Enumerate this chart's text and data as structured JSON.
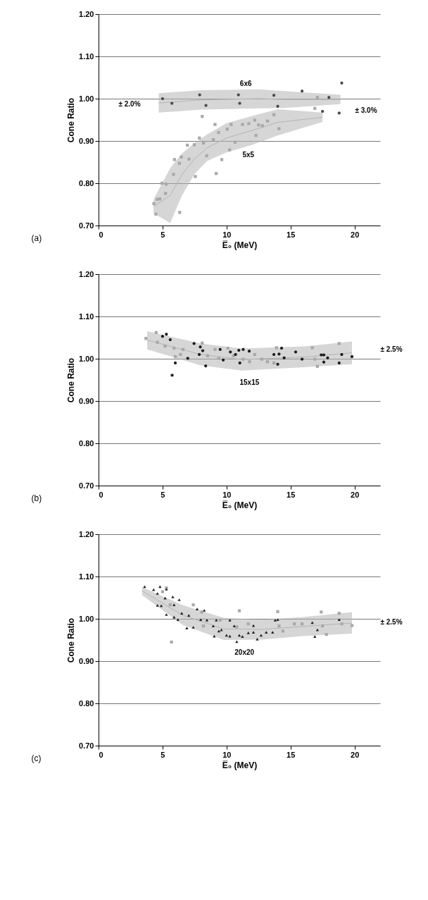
{
  "chart_data": [
    {
      "type": "scatter",
      "xlabel": "E̅₀ (MeV)",
      "ylabel": "Cone Ratio",
      "xlim": [
        0,
        22
      ],
      "xticks": [
        0,
        5,
        10,
        15,
        20
      ],
      "ylim": [
        0.7,
        1.2
      ],
      "yticks": [
        {
          "value": 0.7,
          "label": "0.70"
        },
        {
          "value": 0.8,
          "label": "0.80"
        },
        {
          "value": 0.9,
          "label": "0.90"
        },
        {
          "value": 1.0,
          "label": "1.00"
        },
        {
          "value": 1.1,
          "label": "1.10"
        },
        {
          "value": 1.2,
          "label": "1.20"
        }
      ],
      "grid": "y",
      "series": [
        {
          "type": "line",
          "color": "#b4b4b4",
          "x": [
            4.7,
            8.0,
            12.5,
            14.5,
            18.9
          ],
          "values": [
            0.99,
            0.997,
            1.0,
            0.998,
            0.998
          ],
          "lower": [
            0.967,
            0.974,
            0.977,
            0.978,
            0.987
          ],
          "upper": [
            1.013,
            1.02,
            1.022,
            1.018,
            1.009
          ]
        },
        {
          "type": "line",
          "color": "#b4b4b4",
          "x": [
            4.3,
            5.6,
            6.5,
            7.5,
            8.5,
            10,
            12,
            14,
            17.5
          ],
          "values": [
            0.745,
            0.771,
            0.82,
            0.858,
            0.884,
            0.907,
            0.925,
            0.944,
            0.956
          ],
          "lower": [
            0.729,
            0.706,
            0.77,
            0.822,
            0.853,
            0.873,
            0.891,
            0.913,
            0.945
          ],
          "upper": [
            0.762,
            0.836,
            0.87,
            0.895,
            0.916,
            0.942,
            0.959,
            0.975,
            0.967
          ]
        },
        {
          "color": "#4a4a4a",
          "marker": "circle",
          "x": [
            5.0,
            5.73,
            7.9,
            8.39,
            10.93,
            11.03,
            13.7,
            14.0,
            15.9,
            18.0,
            19.0,
            18.8,
            17.5
          ],
          "values": [
            1.0,
            0.989,
            1.009,
            0.984,
            1.009,
            0.989,
            1.008,
            0.982,
            1.018,
            1.003,
            1.037,
            0.966,
            0.97
          ]
        },
        {
          "color": "#a8a8a8",
          "marker": "square",
          "x": [
            16.9,
            17.1,
            4.32,
            4.58,
            4.79,
            4.48,
            4.95,
            5.28,
            5.23,
            5.86,
            5.93,
            6.34,
            6.32,
            6.47,
            7.07,
            6.94,
            7.56,
            7.48,
            7.88,
            8.2,
            8.45,
            8.1,
            9.1,
            9.19,
            9.63,
            8.97,
            9.38,
            10.05,
            10.36,
            10.24,
            10.67,
            11.25,
            11.74,
            12.2,
            12.5,
            12.3,
            12.8,
            13.2,
            13.7,
            14.1
          ],
          "values": [
            0.977,
            1.003,
            0.752,
            0.762,
            0.763,
            0.727,
            0.8,
            0.798,
            0.776,
            0.821,
            0.856,
            0.731,
            0.847,
            0.862,
            0.857,
            0.89,
            0.816,
            0.891,
            0.907,
            0.895,
            0.865,
            0.958,
            0.939,
            0.823,
            0.856,
            0.903,
            0.92,
            0.928,
            0.939,
            0.879,
            0.897,
            0.939,
            0.941,
            0.949,
            0.938,
            0.913,
            0.936,
            0.947,
            0.962,
            0.929
          ]
        }
      ],
      "annotations": [
        "6x6",
        "5x5",
        "± 2.0%",
        "± 3.0%",
        "(a)"
      ]
    },
    {
      "type": "scatter",
      "xlabel": "E̅₀ (MeV)",
      "ylabel": "Cone Ratio",
      "xlim": [
        0,
        22
      ],
      "xticks": [
        0,
        5,
        10,
        15,
        20
      ],
      "ylim": [
        0.7,
        1.2
      ],
      "yticks": [
        {
          "value": 0.7,
          "label": "0.70"
        },
        {
          "value": 0.8,
          "label": "0.80"
        },
        {
          "value": 0.9,
          "label": "0.90"
        },
        {
          "value": 1.0,
          "label": "1.00"
        },
        {
          "value": 1.1,
          "label": "1.10"
        },
        {
          "value": 1.2,
          "label": "1.20"
        }
      ],
      "grid": "y",
      "series": [
        {
          "type": "line",
          "color": "#b4b4b4",
          "x": [
            3.8,
            8.0,
            11.2,
            16.1,
            19.8
          ],
          "values": [
            1.044,
            1.01,
            0.998,
            1.004,
            1.014
          ],
          "lower": [
            1.022,
            0.984,
            0.972,
            0.98,
            0.987
          ],
          "upper": [
            1.065,
            1.036,
            1.024,
            1.029,
            1.041
          ]
        },
        {
          "color": "#a8a8a8",
          "marker": "square",
          "x": [
            3.7,
            4.5,
            4.6,
            5.2,
            5.9,
            6.4,
            6.6,
            6.0,
            8.1,
            8.52,
            9.1,
            9.4,
            10.1,
            10.55,
            11.3,
            11.8,
            12.2,
            12.75,
            13.2,
            13.9,
            13.7,
            16.7,
            16.9,
            17.1,
            18.8
          ],
          "values": [
            1.048,
            1.062,
            1.039,
            1.03,
            1.025,
            1.01,
            1.022,
            1.005,
            1.037,
            1.007,
            1.022,
            1.001,
            1.025,
            1.007,
            0.999,
            0.993,
            1.01,
            0.999,
            0.993,
            1.026,
            0.99,
            1.026,
            0.999,
            0.982,
            1.036
          ]
        },
        {
          "color": "#1e1e1e",
          "marker": "circle",
          "x": [
            5.0,
            5.3,
            5.6,
            6.0,
            5.75,
            6.97,
            7.46,
            7.95,
            8.14,
            7.87,
            8.37,
            9.5,
            9.74,
            10.3,
            10.7,
            10.96,
            11.3,
            11.04,
            11.77,
            13.7,
            14.1,
            14.3,
            14.5,
            14.0,
            15.4,
            15.9,
            17.4,
            17.6,
            17.9,
            17.6,
            18.8,
            19.0,
            19.8
          ],
          "values": [
            1.053,
            1.058,
            1.045,
            0.99,
            0.961,
            1.001,
            1.036,
            1.028,
            1.019,
            1.01,
            0.983,
            1.022,
            0.997,
            1.016,
            1.01,
            1.02,
            1.022,
            0.99,
            1.018,
            1.01,
            1.011,
            1.025,
            1.002,
            0.987,
            1.016,
            0.999,
            1.009,
            1.009,
            1.002,
            0.992,
            0.99,
            1.01,
            1.005
          ]
        }
      ],
      "annotations": [
        "15x15",
        "± 2.5%",
        "(b)"
      ]
    },
    {
      "type": "scatter",
      "xlabel": "E̅₀ (MeV)",
      "ylabel": "Cone Ratio",
      "xlim": [
        0,
        22
      ],
      "xticks": [
        0,
        5,
        10,
        15,
        20
      ],
      "ylim": [
        0.7,
        1.2
      ],
      "yticks": [
        {
          "value": 0.7,
          "label": "0.70"
        },
        {
          "value": 0.8,
          "label": "0.80"
        },
        {
          "value": 0.9,
          "label": "0.90"
        },
        {
          "value": 1.0,
          "label": "1.00"
        },
        {
          "value": 1.1,
          "label": "1.10"
        },
        {
          "value": 1.2,
          "label": "1.20"
        }
      ],
      "grid": "y",
      "series": [
        {
          "type": "line",
          "color": "#b4b4b4",
          "x": [
            3.4,
            6.6,
            9.8,
            12.8,
            16.0,
            19.8
          ],
          "values": [
            1.066,
            1.008,
            0.976,
            0.975,
            0.982,
            0.99
          ],
          "lower": [
            1.056,
            0.985,
            0.95,
            0.951,
            0.959,
            0.965
          ],
          "upper": [
            1.075,
            1.032,
            1.002,
            0.998,
            1.004,
            1.016
          ]
        },
        {
          "color": "#a8a8a8",
          "marker": "square",
          "x": [
            5.3,
            5.0,
            5.6,
            5.7,
            7.4,
            8.06,
            8.2,
            9.5,
            11.0,
            10.8,
            11.7,
            14.0,
            14.1,
            14.4,
            15.3,
            15.9,
            17.4,
            17.5,
            17.8,
            18.8,
            19.0,
            19.8
          ],
          "values": [
            1.073,
            1.064,
            1.033,
            0.945,
            1.033,
            1.016,
            0.983,
            0.997,
            1.019,
            0.981,
            0.988,
            1.017,
            0.983,
            0.971,
            0.988,
            0.988,
            1.016,
            0.983,
            0.963,
            1.013,
            0.988,
            0.984
          ]
        },
        {
          "color": "#1e1e1e",
          "marker": "triangle",
          "x": [
            3.6,
            4.3,
            4.6,
            4.8,
            5.3,
            5.2,
            4.6,
            4.9,
            5.3,
            5.8,
            5.9,
            6.3,
            5.9,
            6.2,
            6.5,
            6.9,
            7.05,
            7.4,
            7.7,
            7.98,
            8.26,
            8.47,
            8.96,
            9.2,
            9.04,
            9.4,
            9.6,
            10.0,
            10.26,
            10.26,
            10.6,
            10.8,
            11.0,
            11.24,
            11.7,
            12.1,
            12.1,
            12.4,
            12.7,
            13.1,
            13.6,
            13.8,
            14.0,
            16.7,
            16.9,
            17.1,
            18.8
          ],
          "values": [
            1.076,
            1.069,
            1.06,
            1.076,
            1.07,
            1.049,
            1.032,
            1.031,
            1.01,
            1.052,
            1.033,
            1.045,
            1.004,
            0.998,
            1.013,
            0.978,
            1.008,
            0.98,
            1.023,
            0.998,
            1.02,
            0.997,
            0.983,
            0.997,
            0.959,
            0.971,
            0.974,
            0.961,
            0.959,
            0.997,
            0.983,
            0.946,
            0.961,
            0.958,
            0.967,
            0.984,
            0.968,
            0.952,
            0.961,
            0.968,
            0.968,
            0.997,
            0.998,
            0.991,
            0.958,
            0.974,
            0.998
          ]
        }
      ],
      "annotations": [
        "20x20",
        "± 2.5%",
        "(c)"
      ]
    }
  ]
}
